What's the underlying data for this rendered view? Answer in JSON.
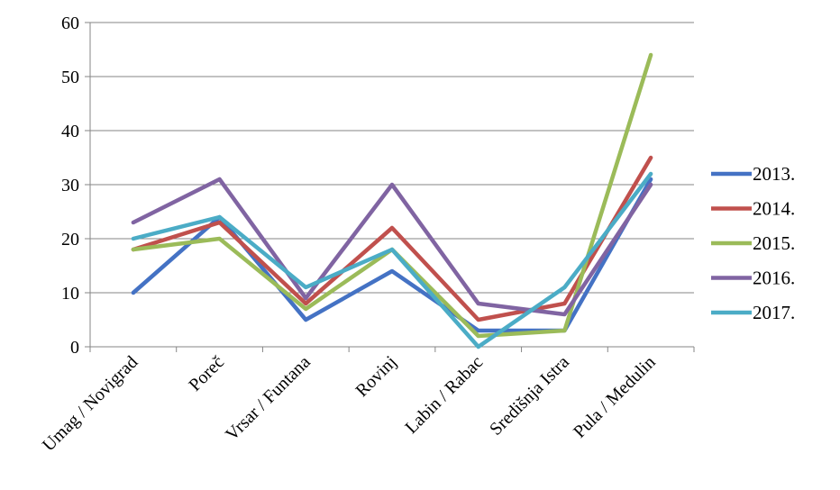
{
  "chart_data": {
    "type": "line",
    "categories": [
      "Umag / Novigrad",
      "Poreč",
      "Vrsar / Funtana",
      "Rovinj",
      "Labin / Rabac",
      "Središnja Istra",
      "Pula / Medulin"
    ],
    "series": [
      {
        "name": "2013.",
        "color": "#4472C4",
        "values": [
          10,
          24,
          5,
          14,
          3,
          3,
          31
        ]
      },
      {
        "name": "2014.",
        "color": "#C0504D",
        "values": [
          18,
          23,
          8,
          22,
          5,
          8,
          35
        ]
      },
      {
        "name": "2015.",
        "color": "#9BBB59",
        "values": [
          18,
          20,
          7,
          18,
          2,
          3,
          54
        ]
      },
      {
        "name": "2016.",
        "color": "#8064A2",
        "values": [
          23,
          31,
          9,
          30,
          8,
          6,
          30
        ]
      },
      {
        "name": "2017.",
        "color": "#4BACC6",
        "values": [
          20,
          24,
          11,
          18,
          0,
          11,
          32
        ]
      }
    ],
    "yticks": [
      "0",
      "10",
      "20",
      "30",
      "40",
      "50",
      "60"
    ],
    "ylim": [
      0,
      60
    ],
    "grid": true,
    "legend": "right"
  }
}
